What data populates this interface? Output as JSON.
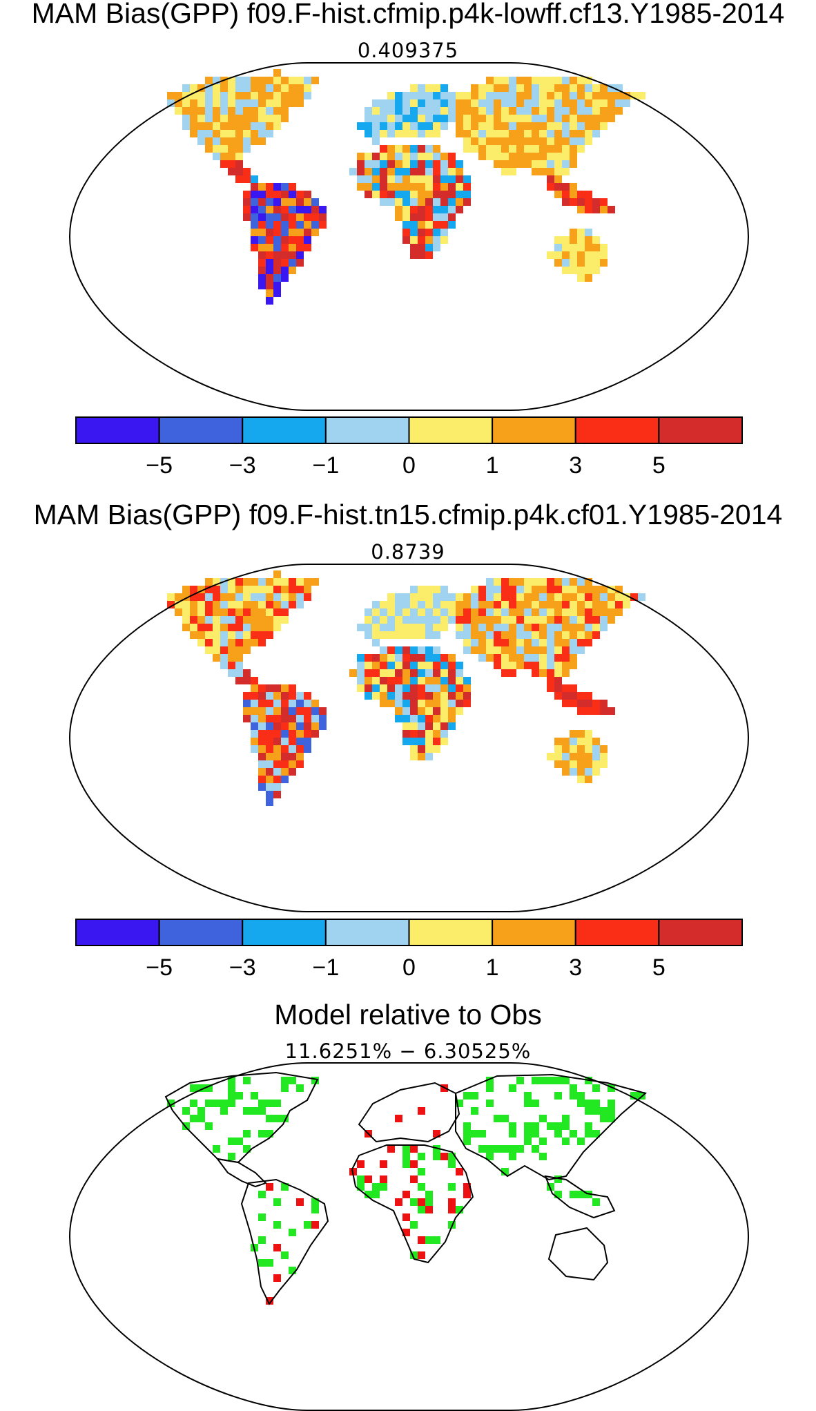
{
  "colorbar": {
    "bins": [
      {
        "color": "#3a16f0"
      },
      {
        "color": "#3f63dc"
      },
      {
        "color": "#16a8ee"
      },
      {
        "color": "#9fd3f0"
      },
      {
        "color": "#fbec6a"
      },
      {
        "color": "#f7a11a"
      },
      {
        "color": "#fa2d16"
      },
      {
        "color": "#d42b2b"
      }
    ],
    "tick_labels": [
      "−5",
      "−3",
      "−1",
      "0",
      "1",
      "3",
      "5"
    ]
  },
  "panels": [
    {
      "title": "MAM Bias(GPP) f09.F-hist.cfmip.p4k-lowff.cf13.Y1985-2014",
      "value": "0.409375"
    },
    {
      "title": "MAM Bias(GPP) f09.F-hist.tn15.cfmip.p4k.cf01.Y1985-2014",
      "value": "0.8739"
    },
    {
      "title": "Model relative to Obs",
      "value": "11.6251% − 6.30525%",
      "colors": {
        "improved": "#22e822",
        "worse": "#ee1111"
      }
    }
  ]
}
